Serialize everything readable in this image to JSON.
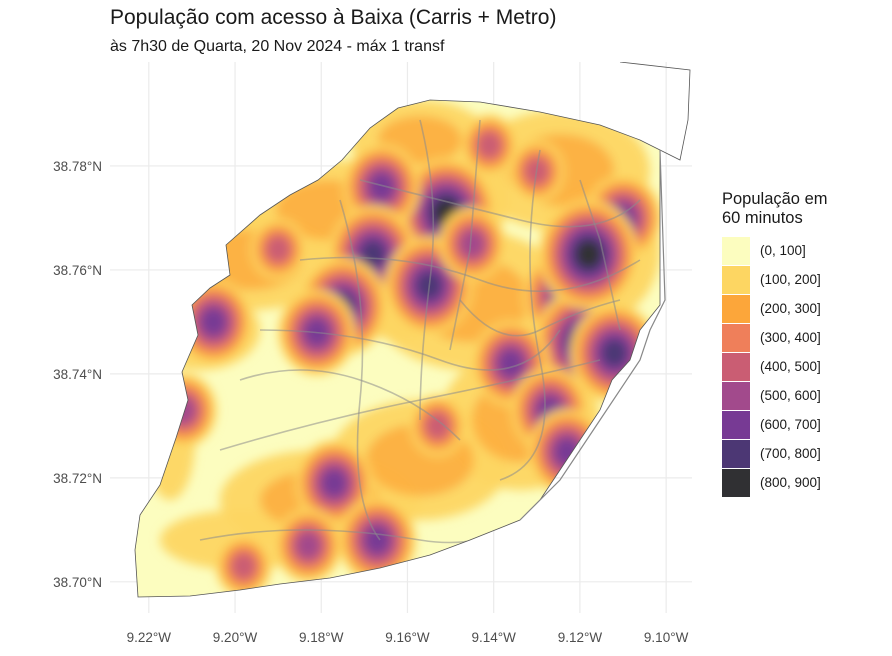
{
  "title": "População com acesso à Baixa (Carris + Metro)",
  "subtitle": "às 7h30 de Quarta, 20 Nov 2024 - máx 1 transf",
  "legend": {
    "title_line1": "População em",
    "title_line2": "60 minutos",
    "items": [
      {
        "label": "(0, 100]",
        "color": "#fcfdbf"
      },
      {
        "label": "(100, 200]",
        "color": "#fdd662"
      },
      {
        "label": "(200, 300]",
        "color": "#fca63a"
      },
      {
        "label": "(300, 400]",
        "color": "#ef7f5a"
      },
      {
        "label": "(400, 500]",
        "color": "#ca5d73"
      },
      {
        "label": "(500, 600]",
        "color": "#a24a8c"
      },
      {
        "label": "(600, 700]",
        "color": "#773a94"
      },
      {
        "label": "(700, 800]",
        "color": "#4c3774"
      },
      {
        "label": "(800, 900]",
        "color": "#303033"
      }
    ]
  },
  "chart_data": {
    "type": "heatmap",
    "x_ticks": [
      "9.22°W",
      "9.20°W",
      "9.18°W",
      "9.16°W",
      "9.14°W",
      "9.12°W",
      "9.10°W"
    ],
    "y_ticks": [
      "38.70°N",
      "38.72°N",
      "38.74°N",
      "38.76°N",
      "38.78°N"
    ],
    "xlim": [
      -9.229,
      -9.094
    ],
    "ylim": [
      38.694,
      38.8
    ],
    "grid": true,
    "legend_position": "right",
    "hotspots": [
      {
        "lon": -9.151,
        "lat": 38.771,
        "level": 8
      },
      {
        "lon": -9.166,
        "lat": 38.776,
        "level": 6
      },
      {
        "lon": -9.168,
        "lat": 38.763,
        "level": 7
      },
      {
        "lon": -9.155,
        "lat": 38.757,
        "level": 7
      },
      {
        "lon": -9.175,
        "lat": 38.753,
        "level": 7
      },
      {
        "lon": -9.181,
        "lat": 38.748,
        "level": 6
      },
      {
        "lon": -9.205,
        "lat": 38.75,
        "level": 6
      },
      {
        "lon": -9.123,
        "lat": 38.755,
        "level": 7
      },
      {
        "lon": -9.119,
        "lat": 38.746,
        "level": 8
      },
      {
        "lon": -9.112,
        "lat": 38.744,
        "level": 7
      },
      {
        "lon": -9.11,
        "lat": 38.77,
        "level": 6
      },
      {
        "lon": -9.118,
        "lat": 38.763,
        "level": 8
      },
      {
        "lon": -9.136,
        "lat": 38.742,
        "level": 6
      },
      {
        "lon": -9.127,
        "lat": 38.733,
        "level": 6
      },
      {
        "lon": -9.123,
        "lat": 38.725,
        "level": 6
      },
      {
        "lon": -9.177,
        "lat": 38.719,
        "level": 6
      },
      {
        "lon": -9.167,
        "lat": 38.708,
        "level": 6
      },
      {
        "lon": -9.183,
        "lat": 38.707,
        "level": 5
      },
      {
        "lon": -9.212,
        "lat": 38.733,
        "level": 5
      },
      {
        "lon": -9.198,
        "lat": 38.703,
        "level": 4
      },
      {
        "lon": -9.19,
        "lat": 38.764,
        "level": 4
      },
      {
        "lon": -9.141,
        "lat": 38.784,
        "level": 4
      },
      {
        "lon": -9.13,
        "lat": 38.779,
        "level": 4
      },
      {
        "lon": -9.153,
        "lat": 38.73,
        "level": 4
      },
      {
        "lon": -9.145,
        "lat": 38.765,
        "level": 5
      }
    ]
  }
}
